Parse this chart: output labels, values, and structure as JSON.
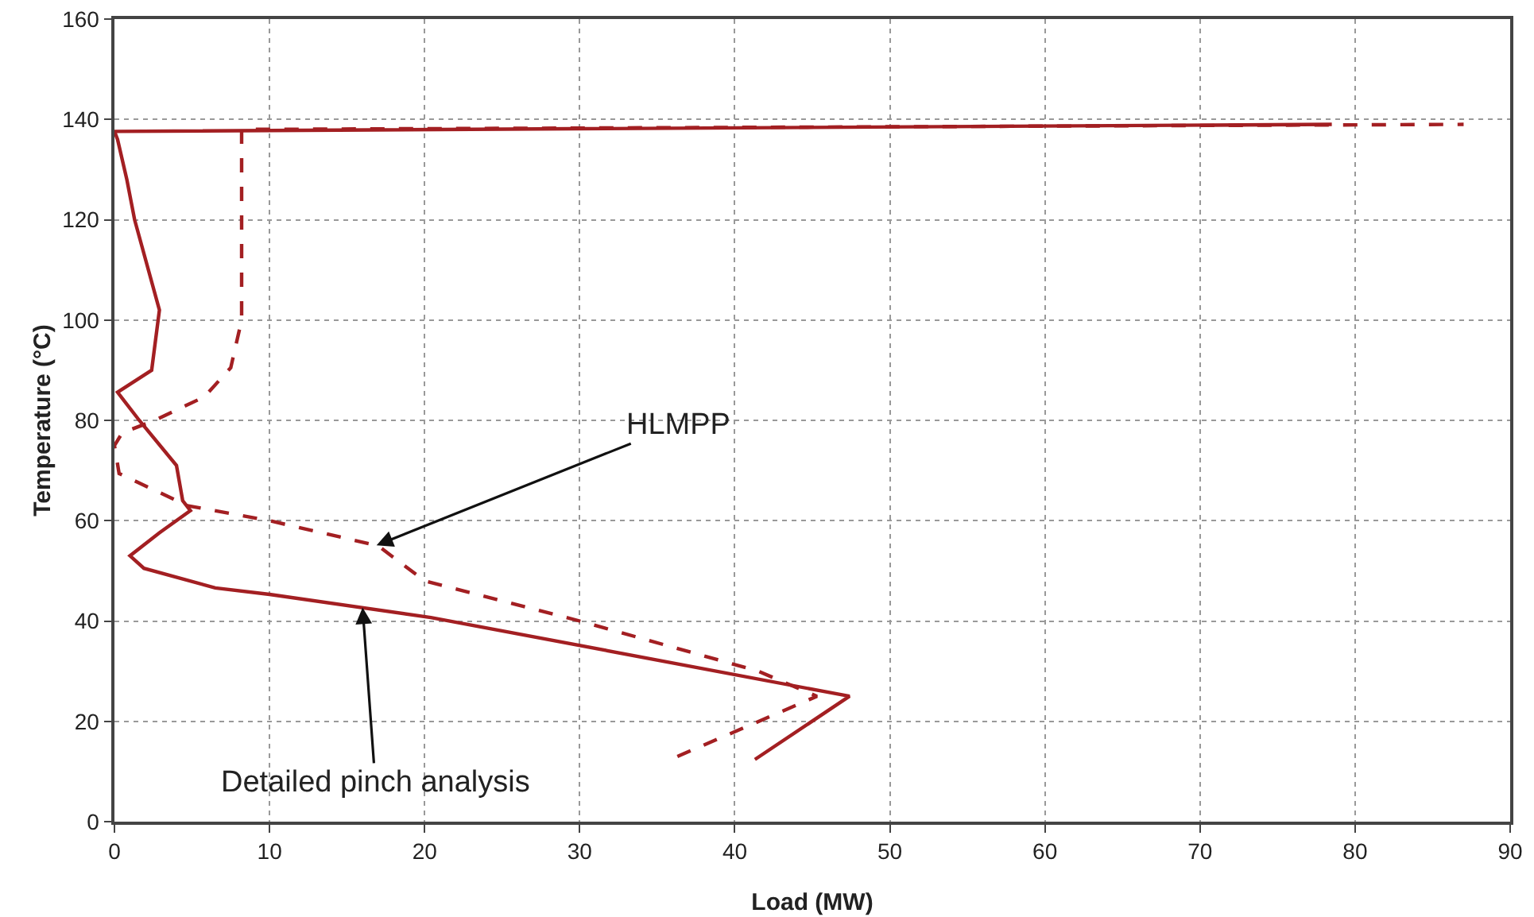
{
  "chart_data": {
    "type": "line",
    "xlabel": "Load (MW)",
    "ylabel": "Temperature (°C)",
    "xlim": [
      0,
      90
    ],
    "xticks": [
      0,
      10,
      20,
      30,
      40,
      50,
      60,
      70,
      80,
      90
    ],
    "ylim": [
      0,
      160
    ],
    "yticks": [
      0,
      20,
      40,
      60,
      80,
      100,
      120,
      140,
      160
    ],
    "grid": true,
    "marker": "none",
    "series": [
      {
        "color": "#a31f22",
        "line_style": "solid",
        "x": [
          41.3,
          47.4,
          20.4,
          10,
          6.5,
          1.9,
          1,
          2.9,
          4.9,
          4.4,
          4,
          1.6,
          0.2,
          2.4,
          2.9,
          1.3,
          0.8,
          0.2,
          0,
          78.5
        ],
        "values": [
          12.4,
          25,
          40.7,
          45.3,
          46.6,
          50.5,
          53,
          57.6,
          62,
          64,
          71,
          80,
          85.6,
          90,
          102,
          120,
          128,
          136,
          137.6,
          139
        ]
      },
      {
        "color": "#a31f22",
        "line_style": "dashed",
        "x": [
          36.3,
          45.3,
          41.5,
          30,
          20,
          17,
          10,
          4.7,
          0.3,
          0,
          0.5,
          2.6,
          5.8,
          7.5,
          8.2,
          8.2,
          87
        ],
        "values": [
          13,
          25,
          30,
          40,
          48,
          55,
          60,
          63,
          69.4,
          75,
          77.5,
          80,
          84.7,
          90.5,
          100,
          138,
          139
        ]
      }
    ],
    "annotations": [
      {
        "text": "HLMPP",
        "x": 16.9,
        "y": 55.1
      },
      {
        "text": "Detailed pinch analysis",
        "x": 16,
        "y": 42.7
      }
    ]
  }
}
